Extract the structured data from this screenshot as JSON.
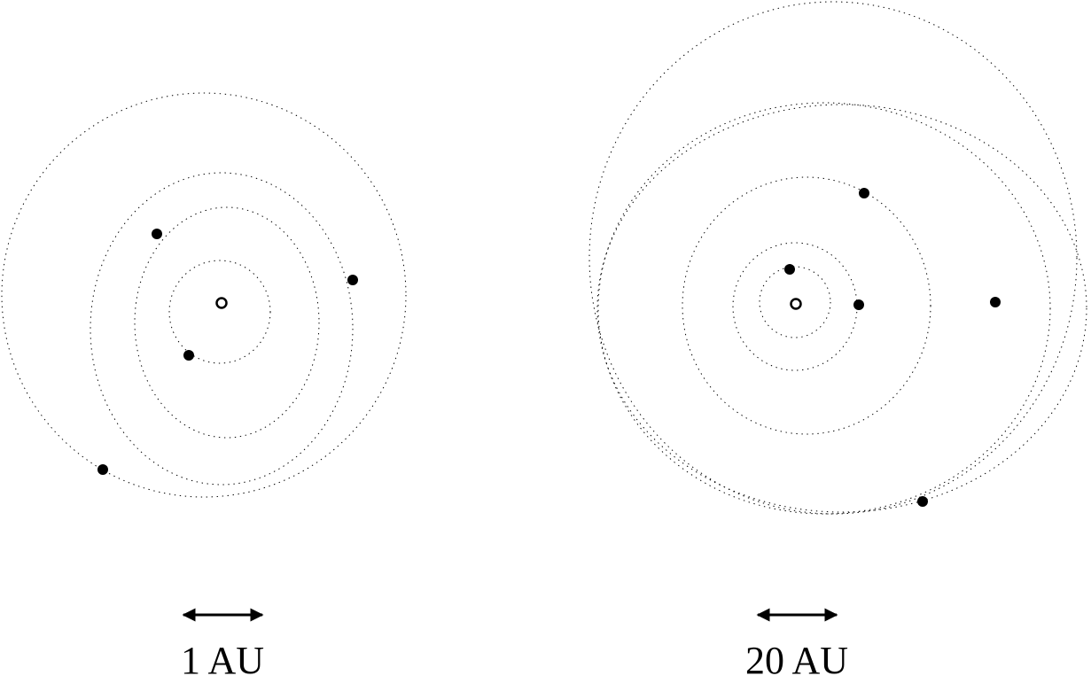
{
  "colors": {
    "ink": "#000000",
    "background": "#ffffff"
  },
  "panels": [
    {
      "id": "left",
      "scale_label": "1 AU",
      "orbit_count": 4,
      "planet_count": 4
    },
    {
      "id": "right",
      "scale_label": "20 AU",
      "orbit_count": 6,
      "planet_count": 5
    }
  ]
}
